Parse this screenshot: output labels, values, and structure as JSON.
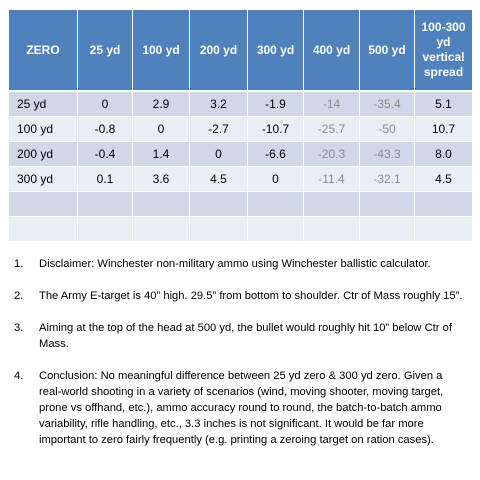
{
  "table": {
    "headers": [
      "ZERO",
      "25 yd",
      "100 yd",
      "200 yd",
      "300 yd",
      "400 yd",
      "500 yd",
      "100-300 yd vertical spread"
    ],
    "rows": [
      [
        "25 yd",
        "0",
        "2.9",
        "3.2",
        "-1.9",
        "-14",
        "-35.4",
        "5.1"
      ],
      [
        "100 yd",
        "-0.8",
        "0",
        "-2.7",
        "-10.7",
        "-25.7",
        "-50",
        "10.7"
      ],
      [
        "200 yd",
        "-0.4",
        "1.4",
        "0",
        "-6.6",
        "-20.3",
        "-43.3",
        "8.0"
      ],
      [
        "300 yd",
        "0.1",
        "3.6",
        "4.5",
        "0",
        "-11.4",
        "-32.1",
        "4.5"
      ]
    ]
  },
  "notes": [
    {
      "number": "1.",
      "text": "Disclaimer:  Winchester non-military ammo using Winchester ballistic calculator."
    },
    {
      "number": "2.",
      "text": "The Army E-target is 40” high.  29.5” from bottom to shoulder.  Ctr of Mass roughly 15”."
    },
    {
      "number": "3.",
      "text": "Aiming at the top of the head at 500 yd, the bullet would roughly hit 10” below Ctr of Mass."
    },
    {
      "number": "4.",
      "text": "Conclusion:  No meaningful difference between 25 yd zero & 300 yd zero.  Given a real-world shooting in a variety of scenarios (wind, moving shooter, moving target, prone vs offhand, etc.), ammo accuracy round to round, the batch-to-batch ammo variability, rifle handling, etc., 3.3 inches is not significant.  It would be far more important to zero fairly frequently (e.g. printing a zeroing target on ration cases)."
    }
  ],
  "colors": {
    "header_bg": "#4f81bd",
    "band_dark": "#d0d8e8",
    "band_light": "#e9edf4",
    "dim_text": "#8c8c8c"
  }
}
